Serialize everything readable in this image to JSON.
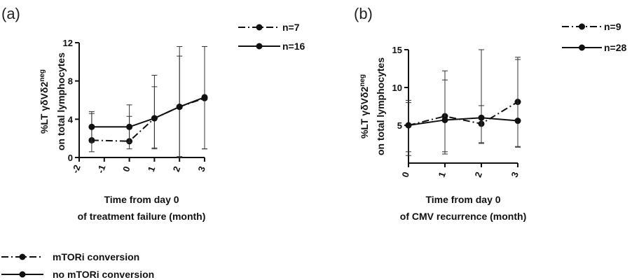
{
  "chart_data": [
    {
      "type": "line",
      "panel_label": "(a)",
      "ylabel_line1": "%LT γδVδ2",
      "ylabel_sup": "neg",
      "ylabel_line2": "on total lymphocytes",
      "xlabel_line1": "Time from day 0",
      "xlabel_line2": "of treatment failure (month)",
      "x_ticks": [
        "-2",
        "-1",
        "0",
        "1",
        "2",
        "3"
      ],
      "x_range": [
        -2,
        3
      ],
      "y_ticks": [
        "0",
        "4",
        "8",
        "12"
      ],
      "y_range": [
        0,
        12
      ],
      "series": [
        {
          "name": "n=7",
          "style": "dashdot",
          "x": [
            -1.5,
            0,
            1,
            2,
            3
          ],
          "y": [
            1.8,
            1.7,
            4.1,
            5.3,
            6.2
          ],
          "err_low": [
            1.2,
            0.8,
            3.2,
            5.2,
            5.3
          ],
          "err_high": [
            3.0,
            3.8,
            3.3,
            5.3,
            5.4
          ]
        },
        {
          "name": "n=16",
          "style": "solid",
          "x": [
            -1.5,
            0,
            1,
            2,
            3
          ],
          "y": [
            3.2,
            3.2,
            4.1,
            5.3,
            6.3
          ],
          "err_low": [
            1.6,
            1.6,
            3.1,
            5.3,
            5.4
          ],
          "err_high": [
            1.4,
            1.1,
            4.5,
            6.3,
            5.3
          ]
        }
      ]
    },
    {
      "type": "line",
      "panel_label": "(b)",
      "ylabel_line1": "%LT γδVδ2",
      "ylabel_sup": "neg",
      "ylabel_line2": "on total lymphocytes",
      "xlabel_line1": "Time from day 0",
      "xlabel_line2": "of CMV recurrence (month)",
      "x_ticks": [
        "0",
        "1",
        "2",
        "3"
      ],
      "x_range": [
        0,
        3
      ],
      "y_ticks": [
        "5",
        "10",
        "15"
      ],
      "y_range": [
        0,
        15
      ],
      "series": [
        {
          "name": "n=9",
          "style": "dashdot",
          "x": [
            0,
            1,
            2,
            3
          ],
          "y": [
            5.0,
            6.2,
            5.2,
            8.1
          ],
          "err_low": [
            4.0,
            5.0,
            2.6,
            6.0
          ],
          "err_high": [
            3.0,
            6.0,
            2.4,
            5.9
          ]
        },
        {
          "name": "n=28",
          "style": "solid",
          "x": [
            0,
            1,
            2,
            3
          ],
          "y": [
            5.0,
            5.7,
            6.0,
            5.6
          ],
          "err_low": [
            3.5,
            4.2,
            3.3,
            3.4
          ],
          "err_high": [
            3.3,
            5.3,
            9.0,
            8.1
          ]
        }
      ]
    }
  ],
  "legend_bottom": [
    {
      "label": "mTORi conversion",
      "style": "dashdot"
    },
    {
      "label": "no mTORi conversion",
      "style": "solid"
    }
  ]
}
